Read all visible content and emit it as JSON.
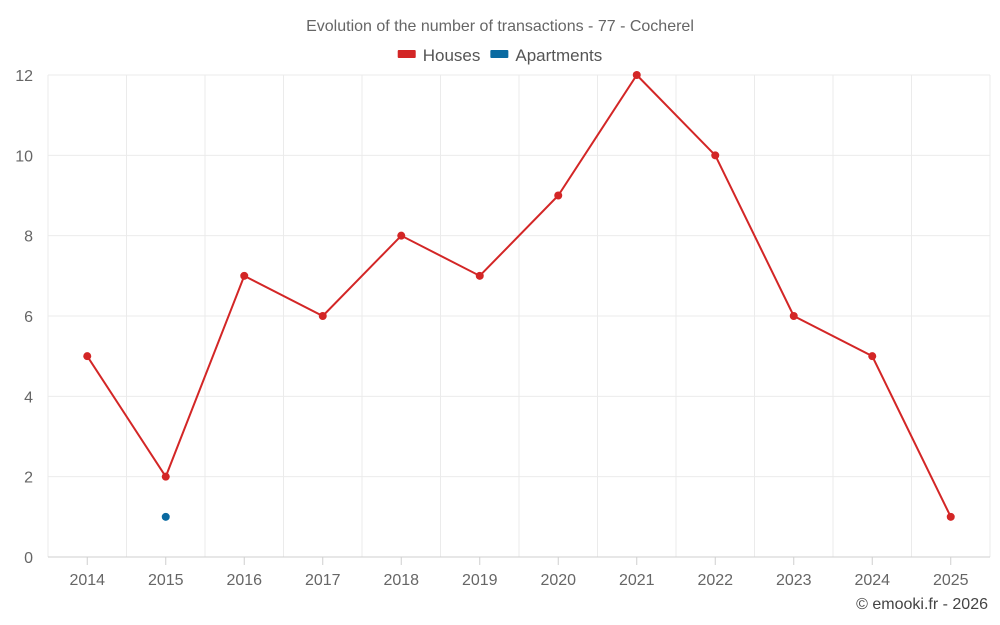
{
  "chart_data": {
    "type": "line",
    "title": "Evolution of the number of transactions - 77 - Cocherel",
    "x": [
      "2014",
      "2015",
      "2016",
      "2017",
      "2018",
      "2019",
      "2020",
      "2021",
      "2022",
      "2023",
      "2024",
      "2025"
    ],
    "series": [
      {
        "name": "Houses",
        "color": "#d32626",
        "values": [
          5,
          2,
          7,
          6,
          8,
          7,
          9,
          12,
          10,
          6,
          5,
          1
        ]
      },
      {
        "name": "Apartments",
        "color": "#0a6aa1",
        "values": [
          null,
          1,
          null,
          null,
          null,
          null,
          null,
          null,
          null,
          null,
          null,
          null
        ]
      }
    ],
    "yticks": [
      0,
      2,
      4,
      6,
      8,
      10,
      12
    ],
    "ylim": [
      0,
      12
    ],
    "xlabel": "",
    "ylabel": "",
    "grid": true,
    "legend_position": "top-center"
  },
  "credit": "© emooki.fr - 2026"
}
